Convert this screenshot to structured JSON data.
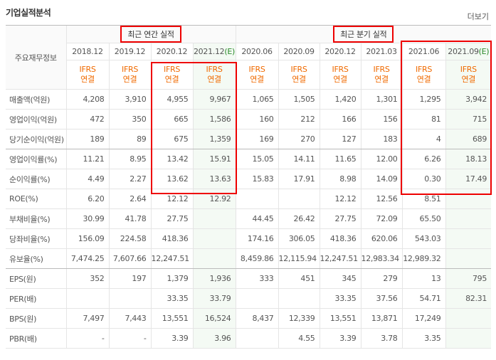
{
  "header": {
    "title": "기업실적분석",
    "more": "더보기"
  },
  "table": {
    "corner": "주요재무정보",
    "groups": [
      "최근 연간 실적",
      "최근 분기 실적"
    ],
    "periods": [
      "2018.12",
      "2019.12",
      "2020.12",
      "2021.12(E)",
      "2020.06",
      "2020.09",
      "2020.12",
      "2021.03",
      "2021.06",
      "2021.09(E)"
    ],
    "accounting": [
      [
        "IFRS",
        "연결"
      ],
      [
        "IFRS",
        "연결"
      ],
      [
        "IFRS",
        "연결"
      ],
      [
        "IFRS",
        "연결"
      ],
      [
        "IFRS",
        "연결"
      ],
      [
        "IFRS",
        "연결"
      ],
      [
        "IFRS",
        "연결"
      ],
      [
        "IFRS",
        "연결"
      ],
      [
        "IFRS",
        "연결"
      ],
      [
        "IFRS",
        "연결"
      ]
    ],
    "rows": [
      {
        "label": "매출액(억원)",
        "values": [
          "4,208",
          "3,910",
          "4,955",
          "9,967",
          "1,065",
          "1,505",
          "1,420",
          "1,301",
          "1,295",
          "3,942"
        ]
      },
      {
        "label": "영업이익(억원)",
        "values": [
          "472",
          "350",
          "665",
          "1,586",
          "160",
          "212",
          "166",
          "156",
          "81",
          "715"
        ]
      },
      {
        "label": "당기순이익(억원)",
        "values": [
          "189",
          "89",
          "675",
          "1,359",
          "169",
          "270",
          "127",
          "183",
          "4",
          "689"
        ]
      },
      {
        "label": "영업이익률(%)",
        "values": [
          "11.21",
          "8.95",
          "13.42",
          "15.91",
          "15.05",
          "14.11",
          "11.65",
          "12.00",
          "6.26",
          "18.13"
        ]
      },
      {
        "label": "순이익률(%)",
        "values": [
          "4.49",
          "2.27",
          "13.62",
          "13.63",
          "15.83",
          "17.91",
          "8.98",
          "14.09",
          "0.30",
          "17.49"
        ]
      },
      {
        "label": "ROE(%)",
        "values": [
          "6.20",
          "2.64",
          "12.12",
          "12.92",
          null,
          null,
          "12.12",
          "12.56",
          "8.51",
          null
        ]
      },
      {
        "label": "부채비율(%)",
        "values": [
          "30.99",
          "41.78",
          "27.75",
          null,
          "44.45",
          "26.42",
          "27.75",
          "72.09",
          "65.50",
          null
        ]
      },
      {
        "label": "당좌비율(%)",
        "values": [
          "156.09",
          "224.58",
          "418.36",
          null,
          "174.16",
          "306.05",
          "418.36",
          "620.06",
          "543.03",
          null
        ]
      },
      {
        "label": "유보율(%)",
        "values": [
          "7,474.25",
          "7,607.66",
          "12,247.51",
          null,
          "8,459.86",
          "12,115.94",
          "12,247.51",
          "12,983.34",
          "12,989.32",
          null
        ]
      },
      {
        "label": "EPS(원)",
        "values": [
          "352",
          "197",
          "1,379",
          "1,936",
          "333",
          "451",
          "345",
          "279",
          "13",
          "795"
        ]
      },
      {
        "label": "PER(배)",
        "values": [
          null,
          null,
          "33.35",
          "33.79",
          null,
          null,
          "33.35",
          "37.56",
          "54.71",
          "82.31"
        ]
      },
      {
        "label": "BPS(원)",
        "values": [
          "7,497",
          "7,443",
          "13,551",
          "16,524",
          "8,437",
          "12,339",
          "13,551",
          "13,871",
          "17,249",
          null
        ]
      },
      {
        "label": "PBR(배)",
        "values": [
          "-",
          "-",
          "3.39",
          "3.96",
          null,
          "4.55",
          "3.39",
          "3.78",
          "3.35",
          null
        ]
      }
    ]
  }
}
